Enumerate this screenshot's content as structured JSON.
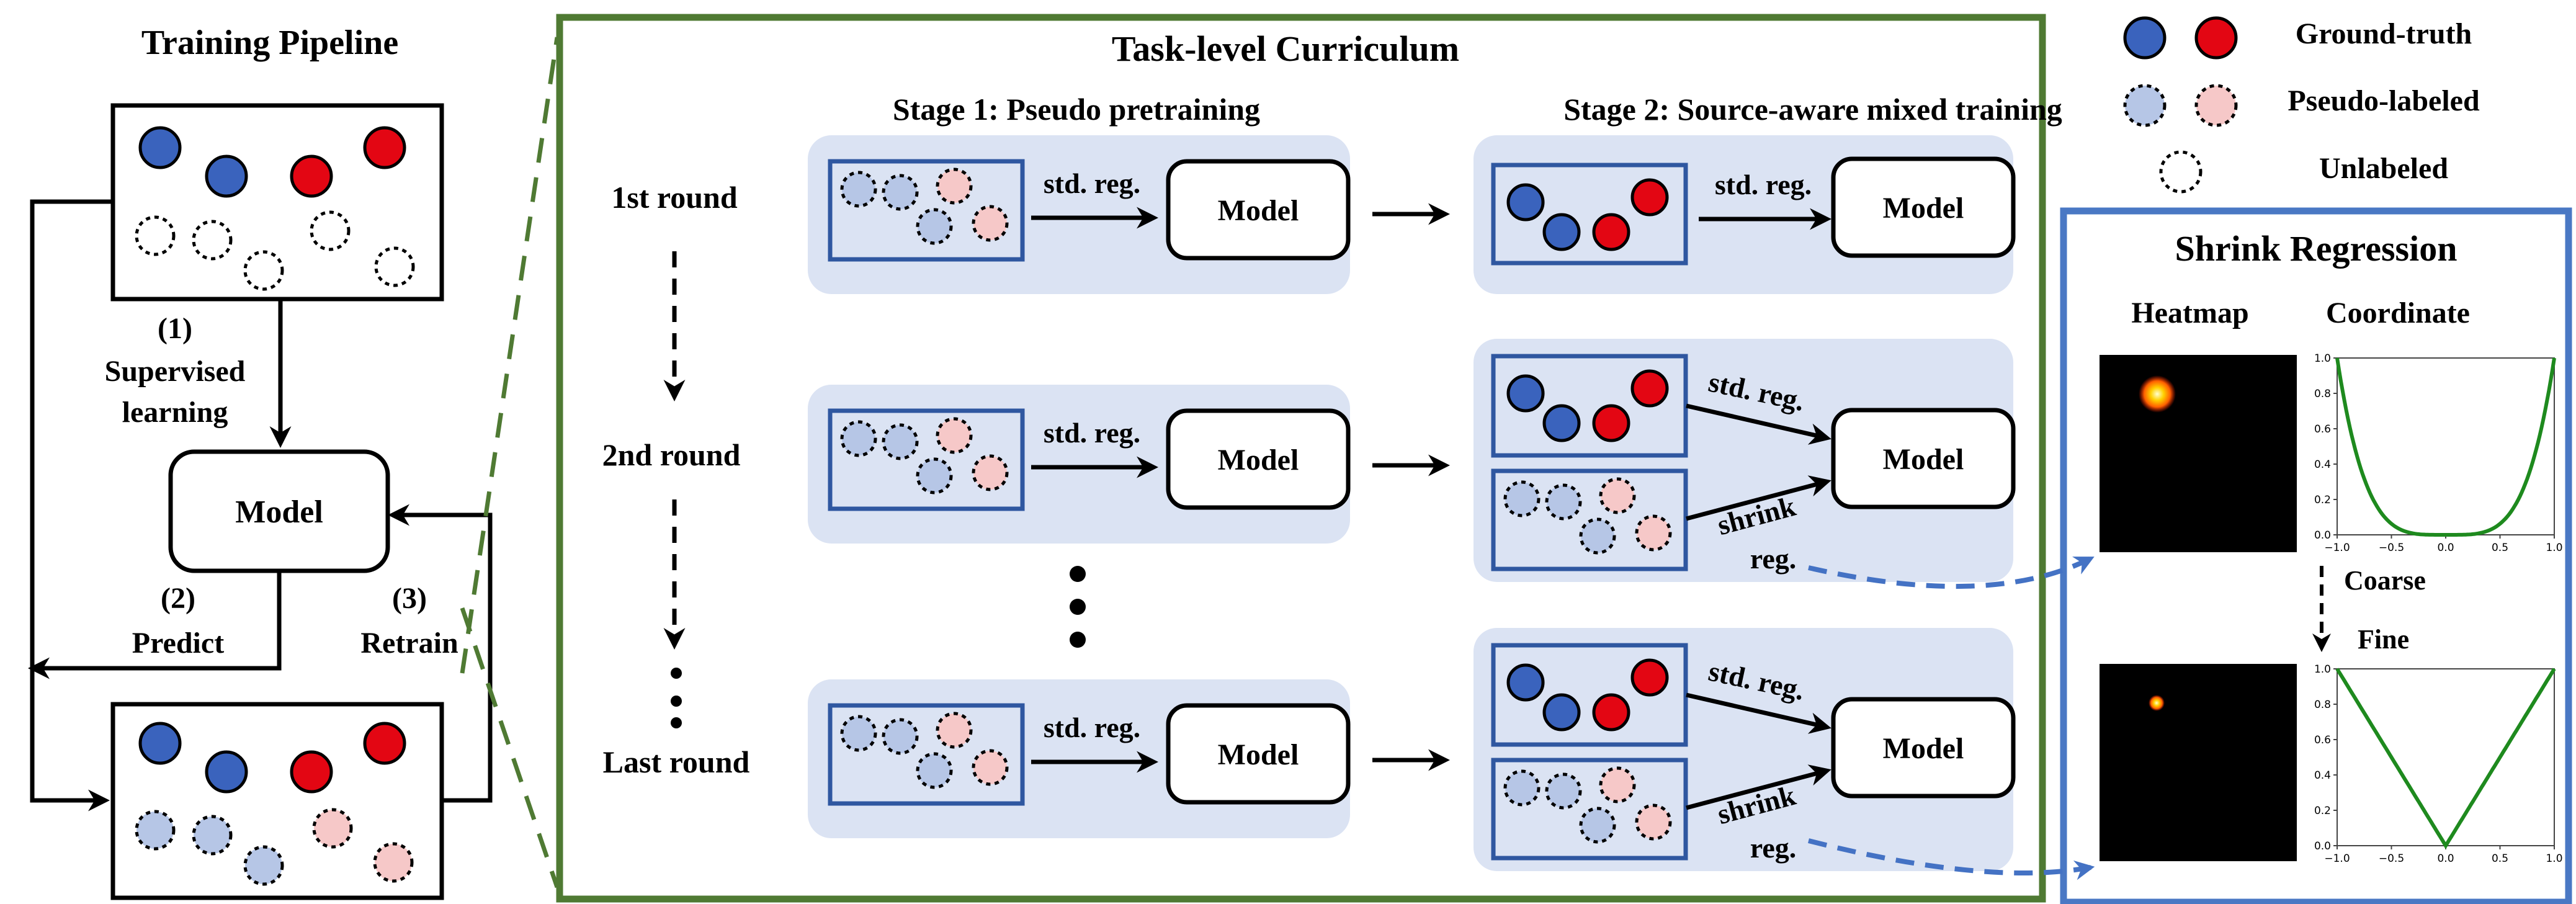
{
  "pipeline": {
    "title": "Training Pipeline",
    "step1_num": "(1)",
    "step1_line1": "Supervised",
    "step1_line2": "learning",
    "model": "Model",
    "step2_num": "(2)",
    "step2_label": "Predict",
    "step3_num": "(3)",
    "step3_label": "Retrain"
  },
  "curriculum": {
    "title": "Task-level Curriculum",
    "stage1_title": "Stage 1: Pseudo pretraining",
    "stage2_title": "Stage 2: Source-aware mixed training",
    "rounds": [
      "1st round",
      "2nd round",
      "Last round"
    ],
    "std_reg": "std. reg.",
    "shrink": "shrink",
    "reg": "reg.",
    "model": "Model"
  },
  "legend": {
    "ground_truth": "Ground-truth",
    "pseudo_labeled": "Pseudo-labeled",
    "unlabeled": "Unlabeled"
  },
  "shrink": {
    "title": "Shrink Regression",
    "heatmap": "Heatmap",
    "coordinate": "Coordinate",
    "coarse": "Coarse",
    "fine": "Fine"
  },
  "chart_data": [
    {
      "type": "line",
      "x": [
        -1.0,
        -0.5,
        0.0,
        0.5,
        1.0
      ],
      "xticks": [
        "−1.0",
        "−0.5",
        "0.0",
        "0.5",
        "1.0"
      ],
      "yticks": [
        "0.0",
        "0.2",
        "0.4",
        "0.6",
        "0.8",
        "1.0"
      ],
      "function": "y = x^4",
      "xlim": [
        -1,
        1
      ],
      "ylim": [
        0,
        1
      ],
      "color": "#1e8a1e"
    },
    {
      "type": "line",
      "x": [
        -1.0,
        -0.5,
        0.0,
        0.5,
        1.0
      ],
      "xticks": [
        "−1.0",
        "−0.5",
        "0.0",
        "0.5",
        "1.0"
      ],
      "yticks": [
        "0.0",
        "0.2",
        "0.4",
        "0.6",
        "0.8",
        "1.0"
      ],
      "function": "y = |x|",
      "xlim": [
        -1,
        1
      ],
      "ylim": [
        0,
        1
      ],
      "color": "#1e8a1e"
    }
  ],
  "colors": {
    "gt_blue": "#3a63bd",
    "gt_red": "#e30613",
    "pseudo_blue": "#b6c6e6",
    "pseudo_red": "#f6c8c8",
    "panel_bg": "#dbe3f3",
    "box_blue": "#2f57a0",
    "green_frame": "#4f7a33",
    "blue_frame": "#4a78c4"
  }
}
